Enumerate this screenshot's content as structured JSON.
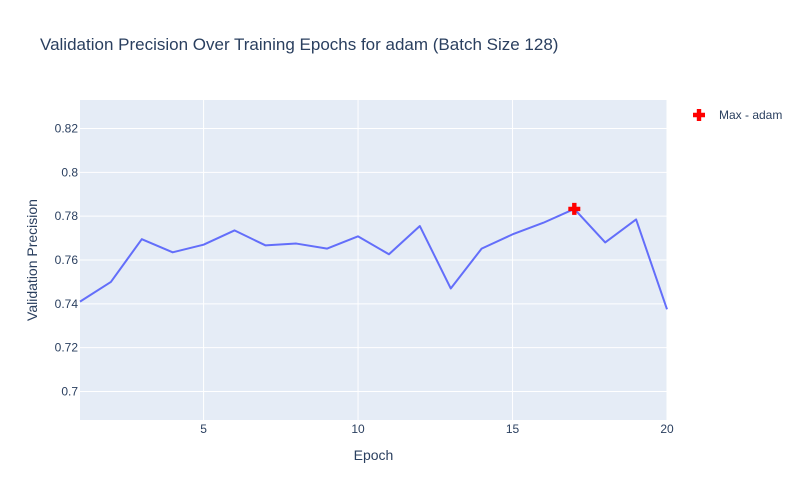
{
  "chart_data": {
    "type": "line",
    "title": "Validation Precision Over Training Epochs for adam (Batch Size 128)",
    "xlabel": "Epoch",
    "ylabel": "Validation Precision",
    "xlim": [
      1,
      20
    ],
    "ylim": [
      0.687,
      0.833
    ],
    "xticks": [
      5,
      10,
      15,
      20
    ],
    "xtick_labels": [
      "5",
      "10",
      "15",
      "20"
    ],
    "yticks": [
      0.7,
      0.72,
      0.74,
      0.76,
      0.78,
      0.8,
      0.82
    ],
    "ytick_labels": [
      "0.7",
      "0.72",
      "0.74",
      "0.76",
      "0.78",
      "0.8",
      "0.82"
    ],
    "grid": true,
    "legend_position": "top-right",
    "series": [
      {
        "type": "line",
        "color": "#636efa",
        "x": [
          1,
          2,
          3,
          4,
          5,
          6,
          7,
          8,
          9,
          10,
          11,
          12,
          13,
          14,
          15,
          16,
          17,
          18,
          19,
          20
        ],
        "y": [
          0.741,
          0.75,
          0.7695,
          0.7635,
          0.767,
          0.7735,
          0.7667,
          0.7675,
          0.7652,
          0.7708,
          0.7626,
          0.7755,
          0.747,
          0.7652,
          0.7717,
          0.777,
          0.7833,
          0.768,
          0.7785,
          0.7375
        ]
      },
      {
        "name": "Max - adam",
        "type": "scatter",
        "marker": "cross",
        "color": "#ff0000",
        "x": [
          17
        ],
        "y": [
          0.7833
        ]
      }
    ]
  }
}
